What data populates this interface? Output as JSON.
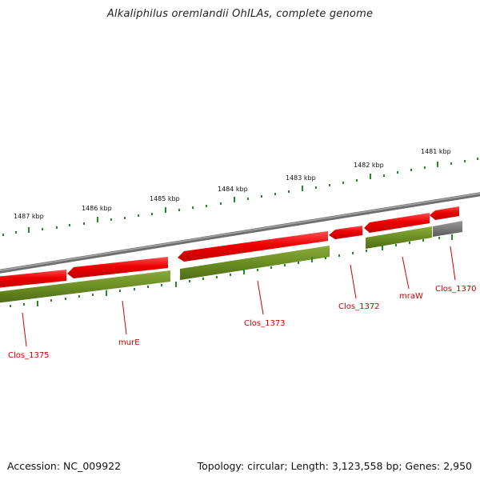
{
  "title": "Alkaliphilus oremlandii OhILAs, complete genome",
  "footer": {
    "accession": "Accession: NC_009922",
    "summary": "Topology: circular; Length: 3,123,558 bp; Genes: 2,950"
  },
  "ruler_labels": [
    "1487 kbp",
    "1486 kbp",
    "1485 kbp",
    "1484 kbp",
    "1483 kbp",
    "1482 kbp",
    "1481 kbp"
  ],
  "gene_labels": [
    "Clos_1375",
    "murE",
    "Clos_1373",
    "Clos_1372",
    "mraW",
    "Clos_1370"
  ],
  "colors": {
    "backbone": "#808080",
    "gene_arrow": "#e00000",
    "cds_bar": "#6b8e23",
    "tick": "#228b22",
    "label": "#cc0000",
    "gray_bar": "#707070"
  }
}
